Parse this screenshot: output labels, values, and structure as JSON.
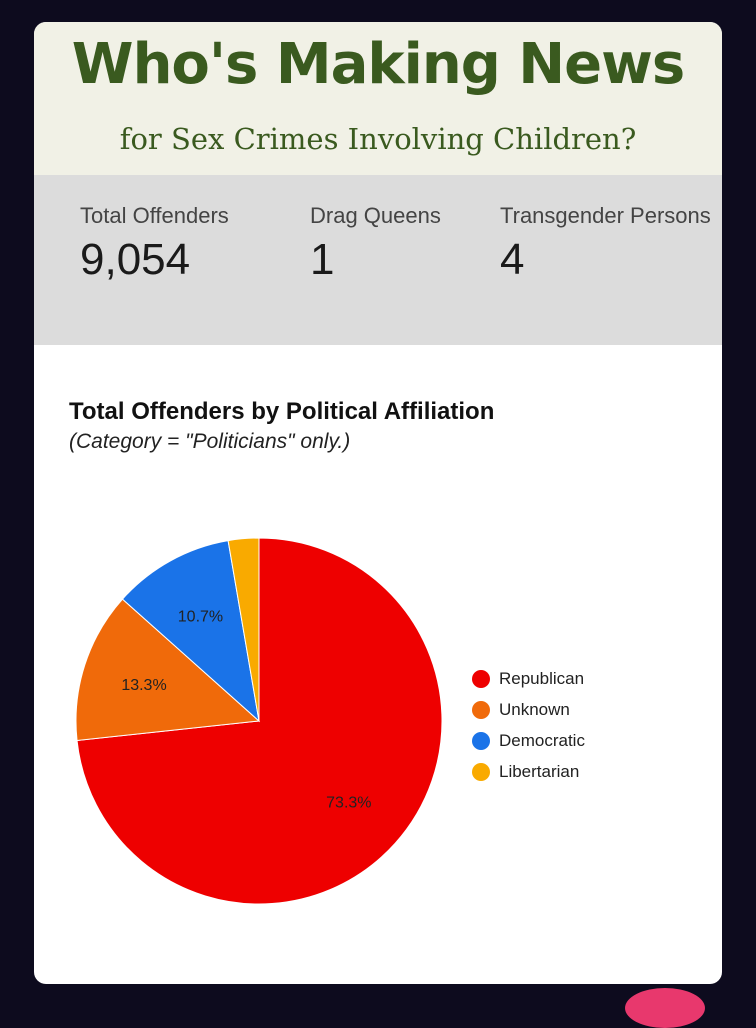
{
  "header": {
    "title": "Who's Making News",
    "subtitle": "for Sex Crimes Involving Children?"
  },
  "stats": [
    {
      "label": "Total Offenders",
      "value": "9,054"
    },
    {
      "label": "Drag Queens",
      "value": "1"
    },
    {
      "label": "Transgender Persons",
      "value": "4"
    }
  ],
  "chart_data": {
    "type": "pie",
    "title": "Total Offenders by Political Affiliation",
    "subtitle": "(Category = \"Politicians\" only.)",
    "legend_position": "right",
    "slices": [
      {
        "label": "Republican",
        "value": 73.3,
        "display": "73.3%",
        "color": "#ee0000"
      },
      {
        "label": "Unknown",
        "value": 13.3,
        "display": "13.3%",
        "color": "#f06a0a"
      },
      {
        "label": "Democratic",
        "value": 10.7,
        "display": "10.7%",
        "color": "#1a73e8"
      },
      {
        "label": "Libertarian",
        "value": 2.7,
        "display": "",
        "color": "#f9aa00"
      }
    ]
  }
}
